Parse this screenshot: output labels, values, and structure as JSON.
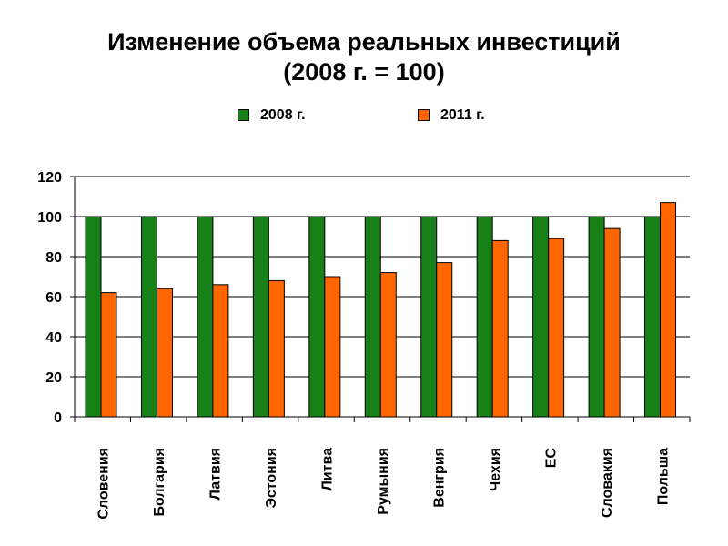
{
  "chart_data": {
    "type": "bar",
    "title_line1": "Изменение объема реальных инвестиций",
    "title_line2": "(2008 г. = 100)",
    "categories": [
      "Словения",
      "Болгария",
      "Латвия",
      "Эстония",
      "Литва",
      "Румыния",
      "Венгрия",
      "Чехия",
      "ЕС",
      "Словакия",
      "Польша"
    ],
    "series": [
      {
        "name": "2008 г.",
        "values": [
          100,
          100,
          100,
          100,
          100,
          100,
          100,
          100,
          100,
          100,
          100
        ]
      },
      {
        "name": "2011 г.",
        "values": [
          62,
          64,
          66,
          68,
          70,
          72,
          77,
          88,
          89,
          94,
          107
        ]
      }
    ],
    "ylim": [
      0,
      120
    ],
    "yticks": [
      "0",
      "20",
      "40",
      "60",
      "80",
      "100",
      "120"
    ],
    "grid": true,
    "legend_position": "top",
    "xlabel": "",
    "ylabel": "",
    "colors": {
      "series_2008": "#178017",
      "series_2011": "#ff6600",
      "grid": "#000000"
    }
  }
}
